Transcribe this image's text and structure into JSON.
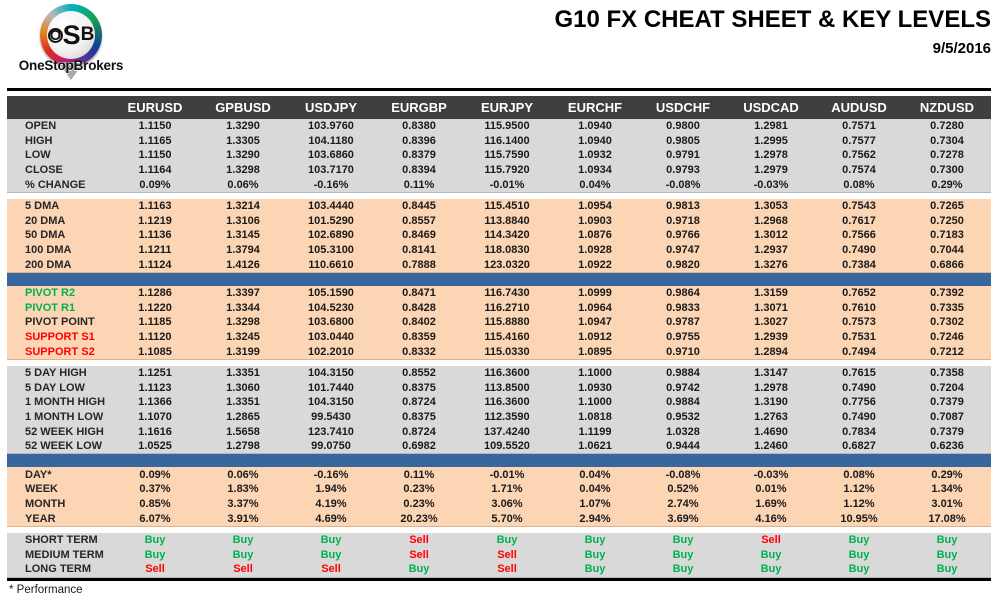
{
  "header": {
    "title": "G10 FX CHEAT SHEET & KEY LEVELS",
    "date": "9/5/2016"
  },
  "logo": {
    "letters": [
      "O",
      "S",
      "B"
    ],
    "name": "OneStopBrokers"
  },
  "footer": {
    "note": "* Performance"
  },
  "colors": {
    "header_bg": "#3f3f3f",
    "section_gray": "#d9d9d9",
    "section_peach": "#fcd5b4",
    "blue_bar": "#38669e",
    "buy_green": "#00b050",
    "sell_red": "#ff0000"
  },
  "table": {
    "columns": [
      "EURUSD",
      "GPBUSD",
      "USDJPY",
      "EURGBP",
      "EURJPY",
      "EURCHF",
      "USDCHF",
      "USDCAD",
      "AUDUSD",
      "NZDUSD"
    ],
    "sections": [
      {
        "id": "ohlc",
        "bg": "gray",
        "divider_after": "gap",
        "rows": [
          {
            "label": "OPEN",
            "values": [
              "1.1150",
              "1.3290",
              "103.9760",
              "0.8380",
              "115.9500",
              "1.0940",
              "0.9800",
              "1.2981",
              "0.7571",
              "0.7280"
            ]
          },
          {
            "label": "HIGH",
            "values": [
              "1.1165",
              "1.3305",
              "104.1180",
              "0.8396",
              "116.1400",
              "1.0940",
              "0.9805",
              "1.2995",
              "0.7577",
              "0.7304"
            ]
          },
          {
            "label": "LOW",
            "values": [
              "1.1150",
              "1.3290",
              "103.6860",
              "0.8379",
              "115.7590",
              "1.0932",
              "0.9791",
              "1.2978",
              "0.7562",
              "0.7278"
            ]
          },
          {
            "label": "CLOSE",
            "values": [
              "1.1164",
              "1.3298",
              "103.7170",
              "0.8394",
              "115.7920",
              "1.0934",
              "0.9793",
              "1.2979",
              "0.7574",
              "0.7300"
            ]
          },
          {
            "label": "% CHANGE",
            "values": [
              "0.09%",
              "0.06%",
              "-0.16%",
              "0.11%",
              "-0.01%",
              "0.04%",
              "-0.08%",
              "-0.03%",
              "0.08%",
              "0.29%"
            ]
          }
        ]
      },
      {
        "id": "dma",
        "bg": "peach",
        "divider_after": "bluebar",
        "rows": [
          {
            "label": "5 DMA",
            "values": [
              "1.1163",
              "1.3214",
              "103.4440",
              "0.8445",
              "115.4510",
              "1.0954",
              "0.9813",
              "1.3053",
              "0.7543",
              "0.7265"
            ]
          },
          {
            "label": "20 DMA",
            "values": [
              "1.1219",
              "1.3106",
              "101.5290",
              "0.8557",
              "113.8840",
              "1.0903",
              "0.9718",
              "1.2968",
              "0.7617",
              "0.7250"
            ]
          },
          {
            "label": "50 DMA",
            "values": [
              "1.1136",
              "1.3145",
              "102.6890",
              "0.8469",
              "114.3420",
              "1.0876",
              "0.9766",
              "1.3012",
              "0.7566",
              "0.7183"
            ]
          },
          {
            "label": "100 DMA",
            "values": [
              "1.1211",
              "1.3794",
              "105.3100",
              "0.8141",
              "118.0830",
              "1.0928",
              "0.9747",
              "1.2937",
              "0.7490",
              "0.7044"
            ]
          },
          {
            "label": "200 DMA",
            "values": [
              "1.1124",
              "1.4126",
              "110.6610",
              "0.7888",
              "123.0320",
              "1.0922",
              "0.9820",
              "1.3276",
              "0.7384",
              "0.6866"
            ]
          }
        ]
      },
      {
        "id": "pivots",
        "bg": "peach",
        "divider_after": "gap",
        "rows": [
          {
            "label": "PIVOT R2",
            "label_color": "green",
            "values": [
              "1.1286",
              "1.3397",
              "105.1590",
              "0.8471",
              "116.7430",
              "1.0999",
              "0.9864",
              "1.3159",
              "0.7652",
              "0.7392"
            ]
          },
          {
            "label": "PIVOT R1",
            "label_color": "green",
            "values": [
              "1.1220",
              "1.3344",
              "104.5230",
              "0.8428",
              "116.2710",
              "1.0964",
              "0.9833",
              "1.3071",
              "0.7610",
              "0.7335"
            ]
          },
          {
            "label": "PIVOT POINT",
            "values": [
              "1.1185",
              "1.3298",
              "103.6800",
              "0.8402",
              "115.8880",
              "1.0947",
              "0.9787",
              "1.3027",
              "0.7573",
              "0.7302"
            ]
          },
          {
            "label": "SUPPORT S1",
            "label_color": "red",
            "values": [
              "1.1120",
              "1.3245",
              "103.0440",
              "0.8359",
              "115.4160",
              "1.0912",
              "0.9755",
              "1.2939",
              "0.7531",
              "0.7246"
            ]
          },
          {
            "label": "SUPPORT S2",
            "label_color": "red",
            "values": [
              "1.1085",
              "1.3199",
              "102.2010",
              "0.8332",
              "115.0330",
              "1.0895",
              "0.9710",
              "1.2894",
              "0.7494",
              "0.7212"
            ]
          }
        ]
      },
      {
        "id": "ranges",
        "bg": "gray",
        "divider_after": "bluebar",
        "rows": [
          {
            "label": "5 DAY HIGH",
            "values": [
              "1.1251",
              "1.3351",
              "104.3150",
              "0.8552",
              "116.3600",
              "1.1000",
              "0.9884",
              "1.3147",
              "0.7615",
              "0.7358"
            ]
          },
          {
            "label": "5 DAY LOW",
            "values": [
              "1.1123",
              "1.3060",
              "101.7440",
              "0.8375",
              "113.8500",
              "1.0930",
              "0.9742",
              "1.2978",
              "0.7490",
              "0.7204"
            ]
          },
          {
            "label": "1 MONTH HIGH",
            "values": [
              "1.1366",
              "1.3351",
              "104.3150",
              "0.8724",
              "116.3600",
              "1.1000",
              "0.9884",
              "1.3190",
              "0.7756",
              "0.7379"
            ]
          },
          {
            "label": "1 MONTH LOW",
            "values": [
              "1.1070",
              "1.2865",
              "99.5430",
              "0.8375",
              "112.3590",
              "1.0818",
              "0.9532",
              "1.2763",
              "0.7490",
              "0.7087"
            ]
          },
          {
            "label": "52 WEEK HIGH",
            "values": [
              "1.1616",
              "1.5658",
              "123.7410",
              "0.8724",
              "137.4240",
              "1.1199",
              "1.0328",
              "1.4690",
              "0.7834",
              "0.7379"
            ]
          },
          {
            "label": "52 WEEK LOW",
            "values": [
              "1.0525",
              "1.2798",
              "99.0750",
              "0.6982",
              "109.5520",
              "1.0621",
              "0.9444",
              "1.2460",
              "0.6827",
              "0.6236"
            ]
          }
        ]
      },
      {
        "id": "performance",
        "bg": "peach",
        "divider_after": "gap",
        "rows": [
          {
            "label": "DAY*",
            "values": [
              "0.09%",
              "0.06%",
              "-0.16%",
              "0.11%",
              "-0.01%",
              "0.04%",
              "-0.08%",
              "-0.03%",
              "0.08%",
              "0.29%"
            ]
          },
          {
            "label": "WEEK",
            "values": [
              "0.37%",
              "1.83%",
              "1.94%",
              "0.23%",
              "1.71%",
              "0.04%",
              "0.52%",
              "0.01%",
              "1.12%",
              "1.34%"
            ]
          },
          {
            "label": "MONTH",
            "values": [
              "0.85%",
              "3.37%",
              "4.19%",
              "0.23%",
              "3.06%",
              "1.07%",
              "2.74%",
              "1.69%",
              "1.12%",
              "3.01%"
            ]
          },
          {
            "label": "YEAR",
            "values": [
              "6.07%",
              "3.91%",
              "4.69%",
              "20.23%",
              "5.70%",
              "2.94%",
              "3.69%",
              "4.16%",
              "10.95%",
              "17.08%"
            ]
          }
        ]
      },
      {
        "id": "signals",
        "bg": "gray",
        "cell_type": "signal",
        "divider_after": null,
        "rows": [
          {
            "label": "SHORT TERM",
            "values": [
              "Buy",
              "Buy",
              "Buy",
              "Sell",
              "Buy",
              "Buy",
              "Buy",
              "Sell",
              "Buy",
              "Buy"
            ]
          },
          {
            "label": "MEDIUM TERM",
            "values": [
              "Buy",
              "Buy",
              "Buy",
              "Sell",
              "Sell",
              "Buy",
              "Buy",
              "Buy",
              "Buy",
              "Buy"
            ]
          },
          {
            "label": "LONG TERM",
            "values": [
              "Sell",
              "Sell",
              "Sell",
              "Buy",
              "Sell",
              "Buy",
              "Buy",
              "Buy",
              "Buy",
              "Buy"
            ]
          }
        ]
      }
    ]
  }
}
